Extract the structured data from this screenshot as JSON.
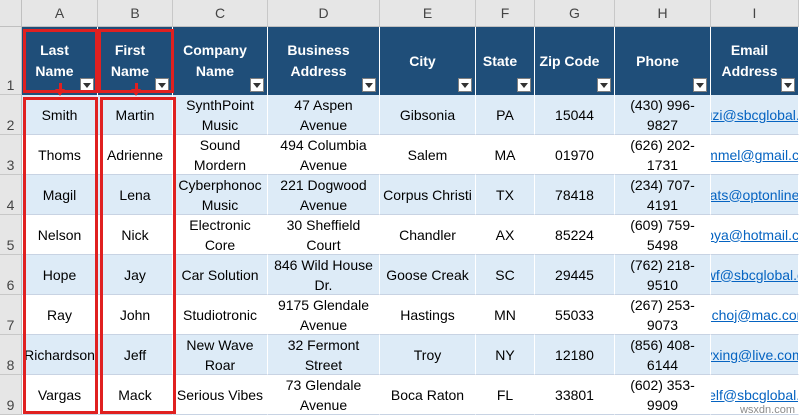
{
  "columns": [
    "A",
    "B",
    "C",
    "D",
    "E",
    "F",
    "G",
    "H",
    "I"
  ],
  "rows": [
    "1",
    "2",
    "3",
    "4",
    "5",
    "6",
    "7",
    "8",
    "9"
  ],
  "headers": [
    "Last Name",
    "First Name",
    "Company Name",
    "Business Address",
    "City",
    "State",
    "Zip Code",
    "Phone",
    "Email Address"
  ],
  "records": [
    [
      "Smith",
      "Martin",
      "SynthPoint Music",
      "47 Aspen Avenue",
      "Gibsonia",
      "PA",
      "15044",
      "(430) 996-9827",
      "chuzi@sbcglobal.net"
    ],
    [
      "Thoms",
      "Adrienne",
      "Sound Mordern",
      "494 Columbia Avenue",
      "Salem",
      "MA",
      "01970",
      "(626) 202-1731",
      "demmel@gmail.com"
    ],
    [
      "Magil",
      "Lena",
      "Cyberphonoc Music",
      "221 Dogwood Avenue",
      "Corpus Christi",
      "TX",
      "78418",
      "(234) 707-4191",
      "animats@optonline.com"
    ],
    [
      "Nelson",
      "Nick",
      "Electronic Core",
      "30 Sheffield Court",
      "Chandler",
      "AX",
      "85224",
      "(609) 759-5498",
      "naoya@hotmail.com"
    ],
    [
      "Hope",
      "Jay",
      "Car Solution",
      "846 Wild House Dr.",
      "Goose Creak",
      "SC",
      "29445",
      "(762) 218-9510",
      "drewf@sbcglobal.com"
    ],
    [
      "Ray",
      "John",
      "Studiotronic",
      "9175 Glendale Avenue",
      "Hastings",
      "MN",
      "55033",
      "(267) 253-9073",
      "nichoj@mac.com"
    ],
    [
      "Richardson",
      "Jeff",
      "New Wave Roar",
      "32 Fermont Street",
      "Troy",
      "NY",
      "12180",
      "(856) 408-6144",
      "yxing@live.com"
    ],
    [
      "Vargas",
      "Mack",
      "Serious Vibes",
      "73 Glendale Avenue",
      "Boca Raton",
      "FL",
      "33801",
      "(602) 353-9909",
      "kmself@sbcglobal.com"
    ]
  ],
  "watermark": "wsxdn.com",
  "colors": {
    "header_bg": "#1f4e79",
    "band_bg": "#ddebf7",
    "link": "#0563c1",
    "highlight": "#e02020"
  }
}
